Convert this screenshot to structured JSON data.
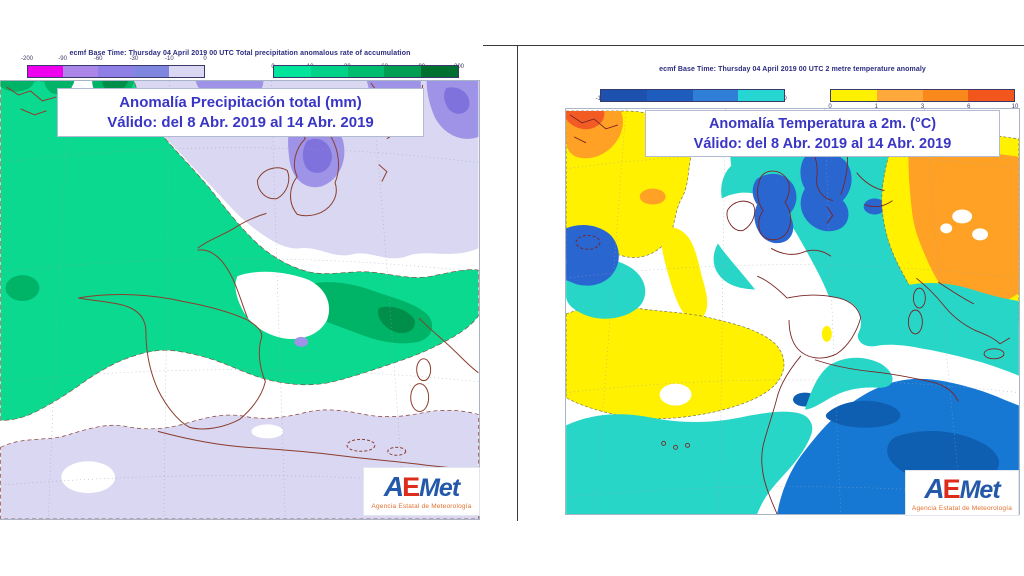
{
  "palette": {
    "lav": "#D9D7F2",
    "purple2": "#9E93E6",
    "purple3": "#7F72DC",
    "green1": "#0BD98F",
    "green2": "#00B467",
    "green3": "#008F4A",
    "cyan": "#28D6C8",
    "blueRoyal": "#2A66D0",
    "blueAzure": "#1778D4",
    "blueDark": "#0E5FB2",
    "yellow": "#FFF100",
    "orange": "#FFA124",
    "redOrange": "#F25C24",
    "coastL": "#8B3E2F",
    "coastR": "#7A2424",
    "grid": "#9AA0B0"
  },
  "left_panel": {
    "header": "ecmf  Base Time: Thursday 04 April 2019 00 UTC Total precipitation anomalous rate of accumulation",
    "title_line1": "Anomalía Precipitación total (mm)",
    "title_line2": "Válido: del 8 Abr. 2019 al 14 Abr. 2019",
    "scale_neg": {
      "ticks": [
        "-200",
        "-90",
        "-60",
        "-30",
        "-10",
        "0"
      ],
      "colors": [
        "#EE00EE",
        "#A986E8",
        "#8D7FE6",
        "#7E86DF",
        "#D9D7F2"
      ]
    },
    "scale_pos": {
      "ticks": [
        "0",
        "10",
        "30",
        "60",
        "90",
        "200"
      ],
      "colors": [
        "#00E59B",
        "#00D287",
        "#00BC6F",
        "#009E52",
        "#007031"
      ]
    }
  },
  "right_panel": {
    "header": "ecmf  Base Time: Thursday 04 April 2019 00 UTC 2 metre temperature anomaly",
    "title_line1": "Anomalía Temperatura a 2m. (°C)",
    "title_line2": "Válido: del 8 Abr. 2019 al 14 Abr. 2019",
    "scale_neg": {
      "ticks": [
        "-10",
        "-6",
        "-3",
        "-1",
        "0"
      ],
      "colors": [
        "#1C51AE",
        "#1E5CBE",
        "#2F7FD8",
        "#25D6D2"
      ]
    },
    "scale_pos": {
      "ticks": [
        "0",
        "1",
        "3",
        "6",
        "10"
      ],
      "colors": [
        "#FFF100",
        "#FFA93C",
        "#F9891B",
        "#F2561D"
      ]
    }
  },
  "logo": {
    "letter_a": "A",
    "letter_e": "E",
    "letters_met": "Met",
    "subtitle": "Agencia Estatal de Meteorología"
  }
}
